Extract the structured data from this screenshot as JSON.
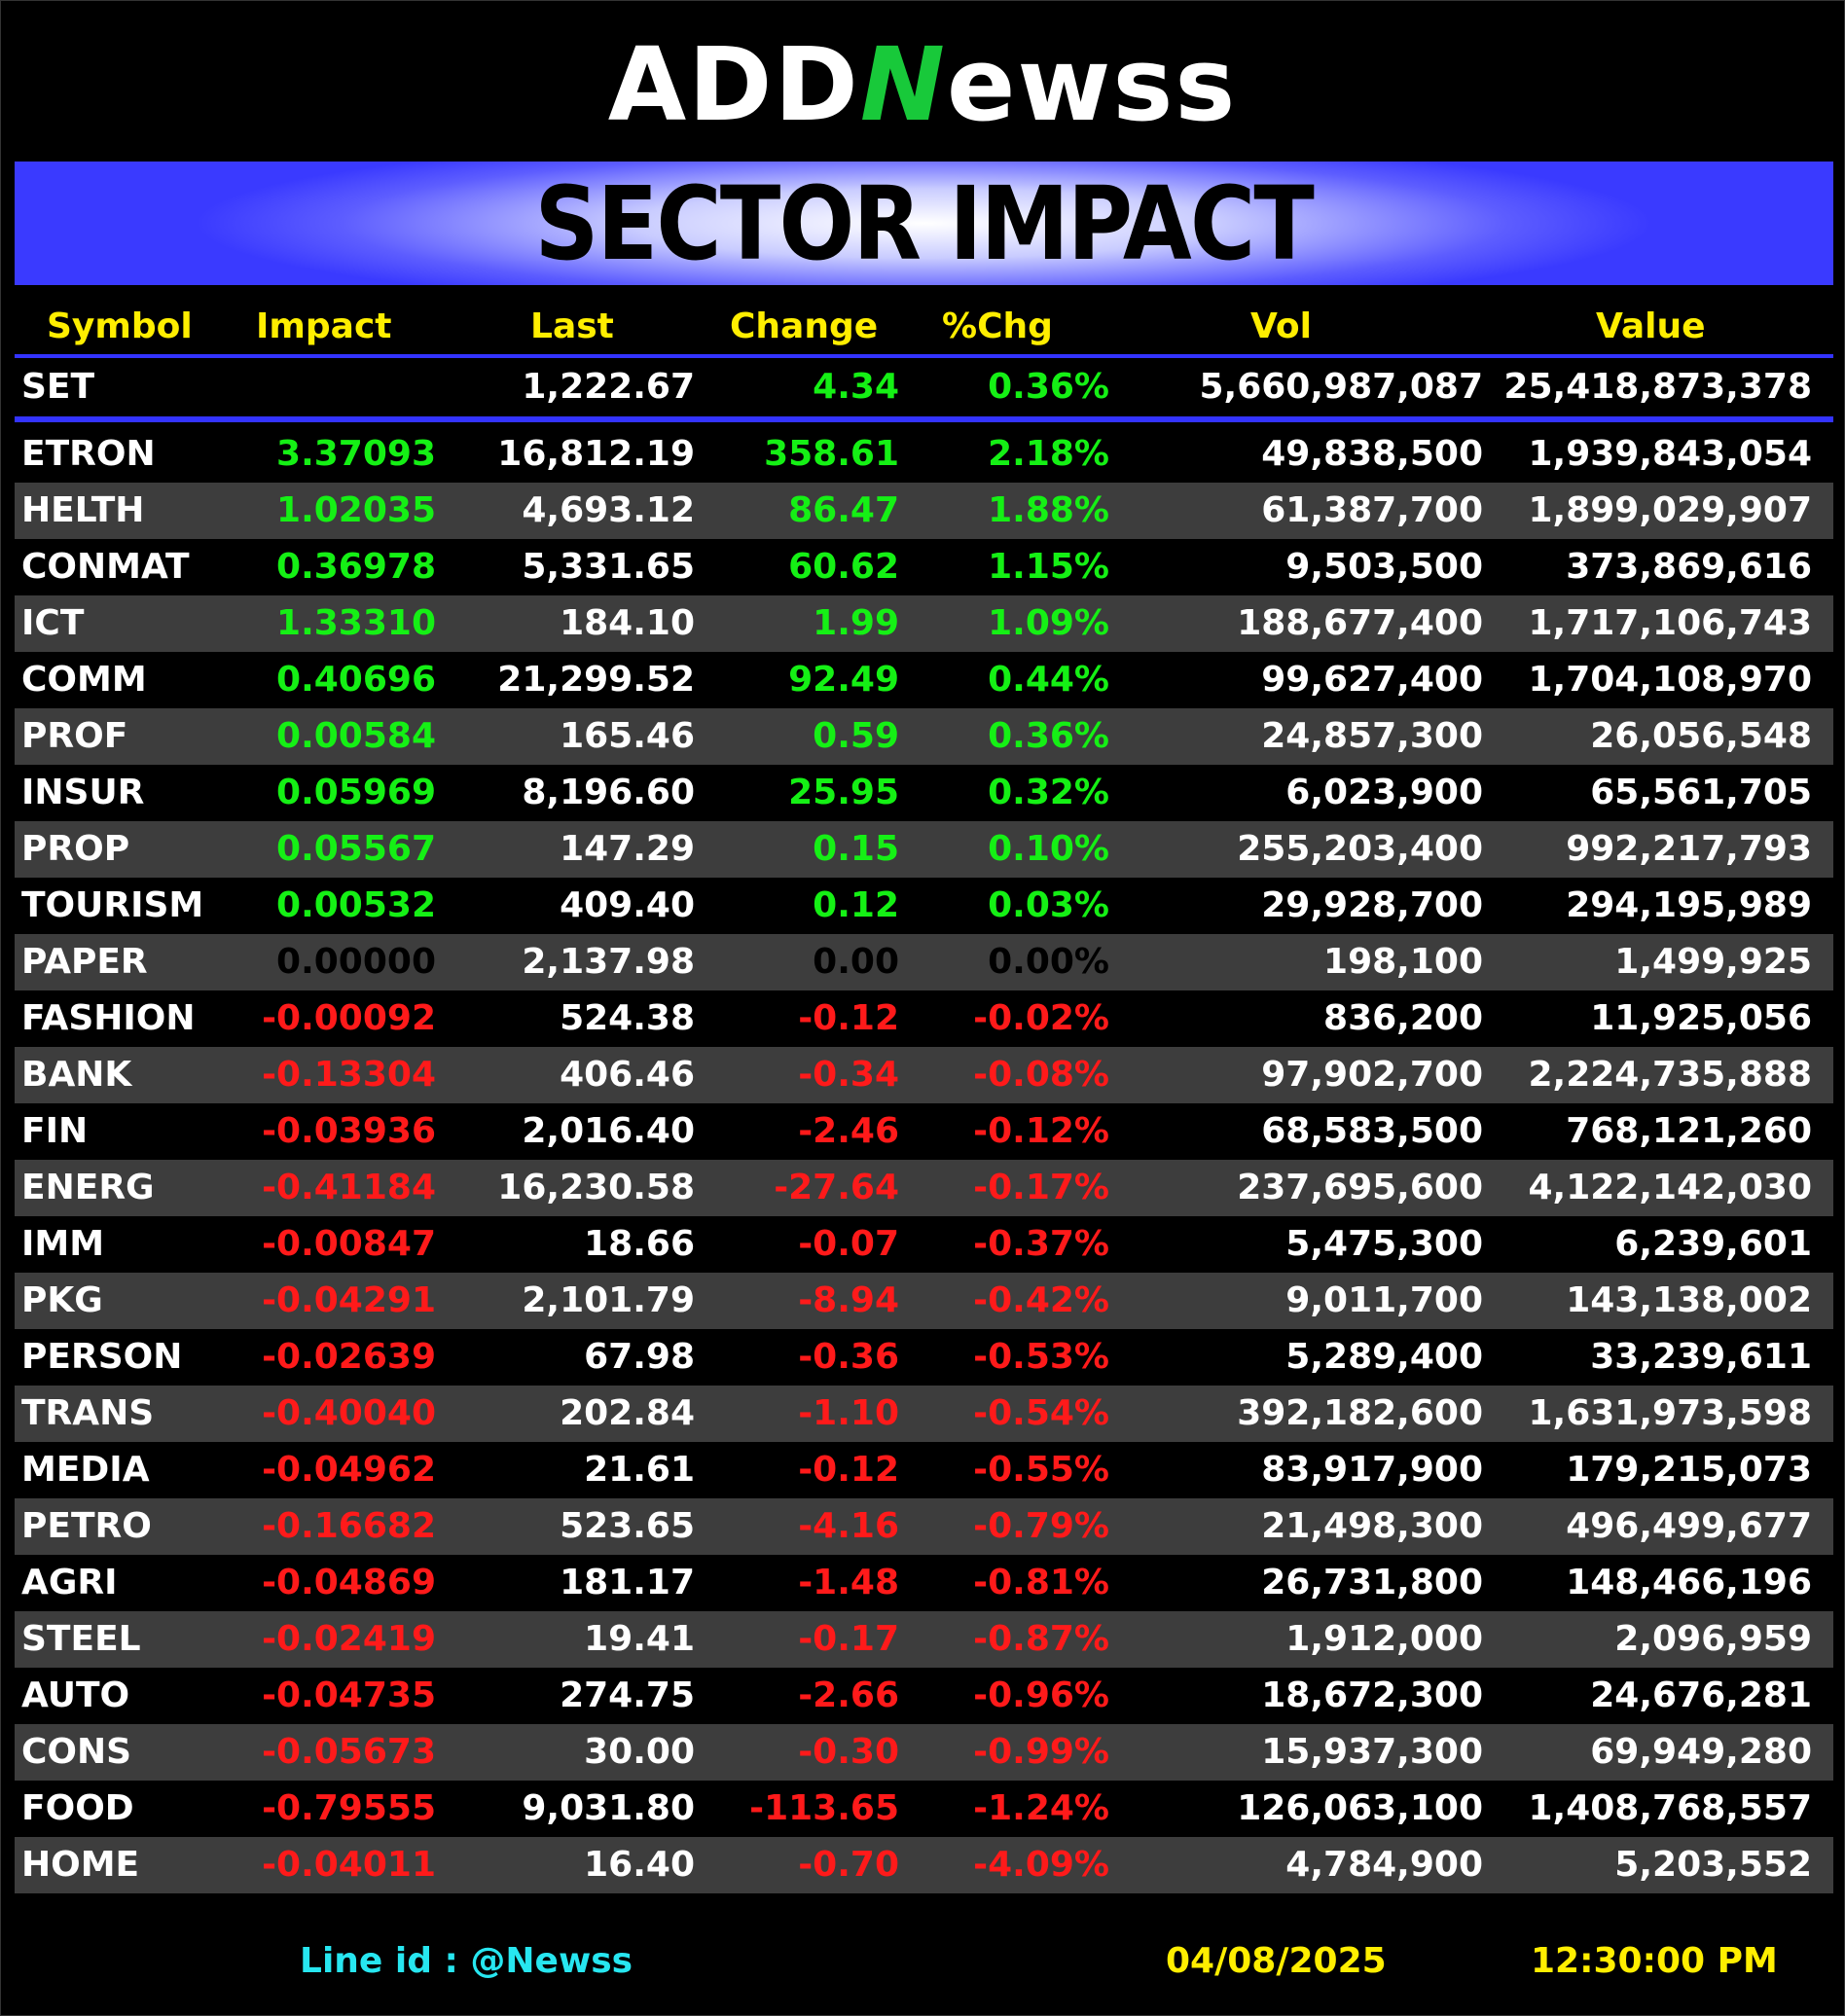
{
  "logo": {
    "part1": "ADD",
    "part2": "N",
    "part3": "ewss"
  },
  "banner": {
    "title": "SECTOR IMPACT"
  },
  "headers": {
    "symbol": "Symbol",
    "impact": "Impact",
    "last": "Last",
    "change": "Change",
    "pct": "%Chg",
    "vol": "Vol",
    "value": "Value"
  },
  "set": {
    "symbol": "SET",
    "impact": "",
    "last": "1,222.67",
    "change": "4.34",
    "pct": "0.36%",
    "vol": "5,660,987,087",
    "value": "25,418,873,378",
    "dir": "pos"
  },
  "colors": {
    "positive": "#15f015",
    "negative": "#ff1a1a",
    "zero": "#000000",
    "header": "#ffee00",
    "accent": "#3333ff",
    "footer_line": "#27e6f0"
  },
  "rows": [
    {
      "symbol": "ETRON",
      "impact": "3.37093",
      "last": "16,812.19",
      "change": "358.61",
      "pct": "2.18%",
      "vol": "49,838,500",
      "value": "1,939,843,054",
      "dir": "pos"
    },
    {
      "symbol": "HELTH",
      "impact": "1.02035",
      "last": "4,693.12",
      "change": "86.47",
      "pct": "1.88%",
      "vol": "61,387,700",
      "value": "1,899,029,907",
      "dir": "pos"
    },
    {
      "symbol": "CONMAT",
      "impact": "0.36978",
      "last": "5,331.65",
      "change": "60.62",
      "pct": "1.15%",
      "vol": "9,503,500",
      "value": "373,869,616",
      "dir": "pos"
    },
    {
      "symbol": "ICT",
      "impact": "1.33310",
      "last": "184.10",
      "change": "1.99",
      "pct": "1.09%",
      "vol": "188,677,400",
      "value": "1,717,106,743",
      "dir": "pos"
    },
    {
      "symbol": "COMM",
      "impact": "0.40696",
      "last": "21,299.52",
      "change": "92.49",
      "pct": "0.44%",
      "vol": "99,627,400",
      "value": "1,704,108,970",
      "dir": "pos"
    },
    {
      "symbol": "PROF",
      "impact": "0.00584",
      "last": "165.46",
      "change": "0.59",
      "pct": "0.36%",
      "vol": "24,857,300",
      "value": "26,056,548",
      "dir": "pos"
    },
    {
      "symbol": "INSUR",
      "impact": "0.05969",
      "last": "8,196.60",
      "change": "25.95",
      "pct": "0.32%",
      "vol": "6,023,900",
      "value": "65,561,705",
      "dir": "pos"
    },
    {
      "symbol": "PROP",
      "impact": "0.05567",
      "last": "147.29",
      "change": "0.15",
      "pct": "0.10%",
      "vol": "255,203,400",
      "value": "992,217,793",
      "dir": "pos"
    },
    {
      "symbol": "TOURISM",
      "impact": "0.00532",
      "last": "409.40",
      "change": "0.12",
      "pct": "0.03%",
      "vol": "29,928,700",
      "value": "294,195,989",
      "dir": "pos"
    },
    {
      "symbol": "PAPER",
      "impact": "0.00000",
      "last": "2,137.98",
      "change": "0.00",
      "pct": "0.00%",
      "vol": "198,100",
      "value": "1,499,925",
      "dir": "zero"
    },
    {
      "symbol": "FASHION",
      "impact": "-0.00092",
      "last": "524.38",
      "change": "-0.12",
      "pct": "-0.02%",
      "vol": "836,200",
      "value": "11,925,056",
      "dir": "neg"
    },
    {
      "symbol": "BANK",
      "impact": "-0.13304",
      "last": "406.46",
      "change": "-0.34",
      "pct": "-0.08%",
      "vol": "97,902,700",
      "value": "2,224,735,888",
      "dir": "neg"
    },
    {
      "symbol": "FIN",
      "impact": "-0.03936",
      "last": "2,016.40",
      "change": "-2.46",
      "pct": "-0.12%",
      "vol": "68,583,500",
      "value": "768,121,260",
      "dir": "neg"
    },
    {
      "symbol": "ENERG",
      "impact": "-0.41184",
      "last": "16,230.58",
      "change": "-27.64",
      "pct": "-0.17%",
      "vol": "237,695,600",
      "value": "4,122,142,030",
      "dir": "neg"
    },
    {
      "symbol": "IMM",
      "impact": "-0.00847",
      "last": "18.66",
      "change": "-0.07",
      "pct": "-0.37%",
      "vol": "5,475,300",
      "value": "6,239,601",
      "dir": "neg"
    },
    {
      "symbol": "PKG",
      "impact": "-0.04291",
      "last": "2,101.79",
      "change": "-8.94",
      "pct": "-0.42%",
      "vol": "9,011,700",
      "value": "143,138,002",
      "dir": "neg"
    },
    {
      "symbol": "PERSON",
      "impact": "-0.02639",
      "last": "67.98",
      "change": "-0.36",
      "pct": "-0.53%",
      "vol": "5,289,400",
      "value": "33,239,611",
      "dir": "neg"
    },
    {
      "symbol": "TRANS",
      "impact": "-0.40040",
      "last": "202.84",
      "change": "-1.10",
      "pct": "-0.54%",
      "vol": "392,182,600",
      "value": "1,631,973,598",
      "dir": "neg"
    },
    {
      "symbol": "MEDIA",
      "impact": "-0.04962",
      "last": "21.61",
      "change": "-0.12",
      "pct": "-0.55%",
      "vol": "83,917,900",
      "value": "179,215,073",
      "dir": "neg"
    },
    {
      "symbol": "PETRO",
      "impact": "-0.16682",
      "last": "523.65",
      "change": "-4.16",
      "pct": "-0.79%",
      "vol": "21,498,300",
      "value": "496,499,677",
      "dir": "neg"
    },
    {
      "symbol": "AGRI",
      "impact": "-0.04869",
      "last": "181.17",
      "change": "-1.48",
      "pct": "-0.81%",
      "vol": "26,731,800",
      "value": "148,466,196",
      "dir": "neg"
    },
    {
      "symbol": "STEEL",
      "impact": "-0.02419",
      "last": "19.41",
      "change": "-0.17",
      "pct": "-0.87%",
      "vol": "1,912,000",
      "value": "2,096,959",
      "dir": "neg"
    },
    {
      "symbol": "AUTO",
      "impact": "-0.04735",
      "last": "274.75",
      "change": "-2.66",
      "pct": "-0.96%",
      "vol": "18,672,300",
      "value": "24,676,281",
      "dir": "neg"
    },
    {
      "symbol": "CONS",
      "impact": "-0.05673",
      "last": "30.00",
      "change": "-0.30",
      "pct": "-0.99%",
      "vol": "15,937,300",
      "value": "69,949,280",
      "dir": "neg"
    },
    {
      "symbol": "FOOD",
      "impact": "-0.79555",
      "last": "9,031.80",
      "change": "-113.65",
      "pct": "-1.24%",
      "vol": "126,063,100",
      "value": "1,408,768,557",
      "dir": "neg"
    },
    {
      "symbol": "HOME",
      "impact": "-0.04011",
      "last": "16.40",
      "change": "-0.70",
      "pct": "-4.09%",
      "vol": "4,784,900",
      "value": "5,203,552",
      "dir": "neg"
    }
  ],
  "footer": {
    "line_id": "Line id  : @Newss",
    "date": "04/08/2025",
    "time": "12:30:00 PM"
  }
}
